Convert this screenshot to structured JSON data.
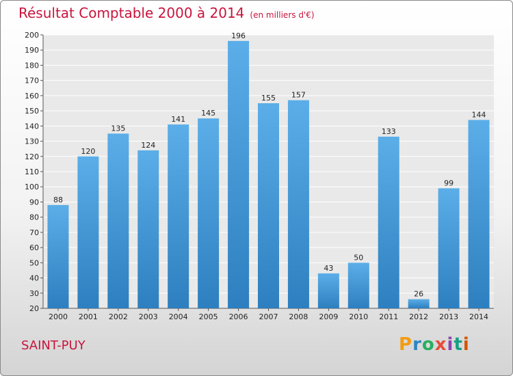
{
  "title": "Résultat Comptable 2000 à 2014",
  "subtitle": "(en milliers d'€)",
  "city": "SAINT-PUY",
  "brand": "Proxiti",
  "colors": {
    "title": "#c8143c",
    "bar_top": "#5baee8",
    "bar_bottom": "#2d7fbf"
  },
  "chart_data": {
    "type": "bar",
    "title": "Résultat Comptable 2000 à 2014",
    "subtitle": "(en milliers d'€)",
    "xlabel": "",
    "ylabel": "",
    "categories": [
      "2000",
      "2001",
      "2002",
      "2003",
      "2004",
      "2005",
      "2006",
      "2007",
      "2008",
      "2009",
      "2010",
      "2011",
      "2012",
      "2013",
      "2014"
    ],
    "values": [
      88,
      120,
      135,
      124,
      141,
      145,
      196,
      155,
      157,
      43,
      50,
      133,
      26,
      99,
      144
    ],
    "ylim": [
      20,
      200
    ],
    "yticks": [
      20,
      30,
      40,
      50,
      60,
      70,
      80,
      90,
      100,
      110,
      120,
      130,
      140,
      150,
      160,
      170,
      180,
      190,
      200
    ],
    "grid": true,
    "data_labels": true
  }
}
